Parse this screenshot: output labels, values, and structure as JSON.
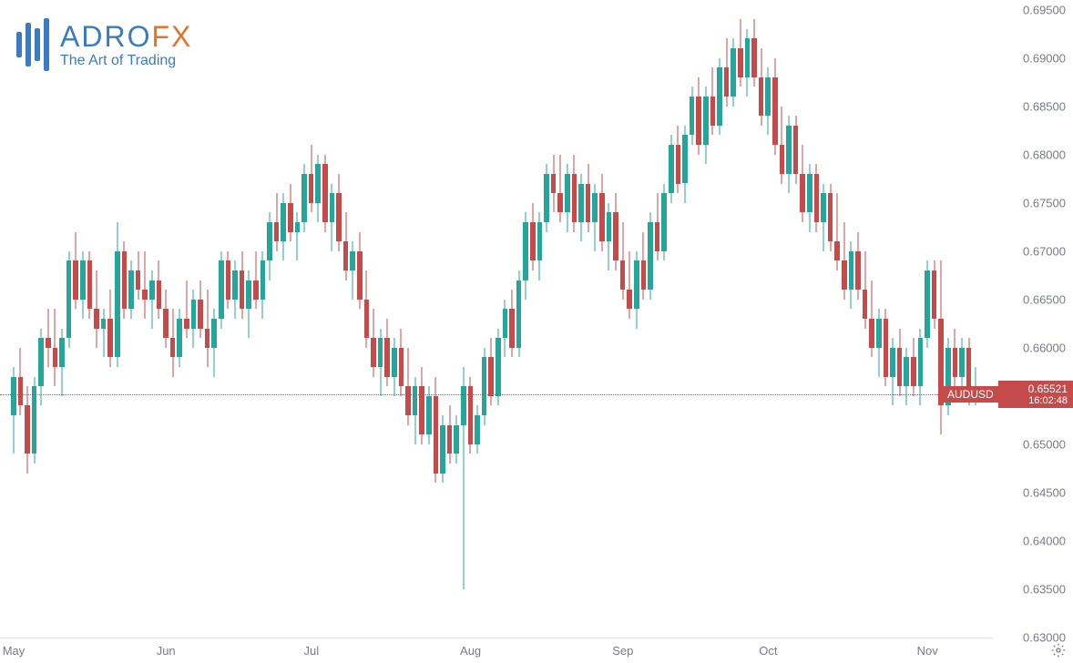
{
  "logo": {
    "brand_part1": "ADRO",
    "brand_part2": "FX",
    "tagline": "The Art of Trading",
    "color_primary": "#3b7bbf",
    "color_accent": "#e8712a"
  },
  "chart": {
    "type": "candlestick",
    "symbol": "AUDUSD",
    "current_price": "0.65521",
    "countdown": "16:02:48",
    "price_line_y": 0.65521,
    "colors": {
      "up": "#26a69a",
      "down": "#c54b4b",
      "axis_text": "#787b86",
      "grid": "#e0e3eb",
      "background": "#ffffff",
      "label_bg": "#c54b4b",
      "label_text": "#ffffff"
    },
    "y_axis": {
      "min": 0.63,
      "max": 0.696,
      "ticks": [
        {
          "v": 0.695,
          "label": "0.69500"
        },
        {
          "v": 0.69,
          "label": "0.69000"
        },
        {
          "v": 0.685,
          "label": "0.68500"
        },
        {
          "v": 0.68,
          "label": "0.68000"
        },
        {
          "v": 0.675,
          "label": "0.67500"
        },
        {
          "v": 0.67,
          "label": "0.67000"
        },
        {
          "v": 0.665,
          "label": "0.66500"
        },
        {
          "v": 0.66,
          "label": "0.66000"
        },
        {
          "v": 0.65521,
          "label": "0.65521",
          "is_price": true
        },
        {
          "v": 0.65,
          "label": "0.65000"
        },
        {
          "v": 0.645,
          "label": "0.64500"
        },
        {
          "v": 0.64,
          "label": "0.64000"
        },
        {
          "v": 0.635,
          "label": "0.63500"
        },
        {
          "v": 0.63,
          "label": "0.63000"
        }
      ]
    },
    "x_axis": {
      "ticks": [
        {
          "i": 0,
          "label": "May"
        },
        {
          "i": 22,
          "label": "Jun"
        },
        {
          "i": 43,
          "label": "Jul"
        },
        {
          "i": 66,
          "label": "Aug"
        },
        {
          "i": 88,
          "label": "Sep"
        },
        {
          "i": 109,
          "label": "Oct"
        },
        {
          "i": 132,
          "label": "Nov"
        }
      ],
      "candle_count": 142,
      "candle_width": 5.5,
      "candle_spacing": 7.6
    },
    "candles": [
      {
        "o": 0.653,
        "h": 0.658,
        "l": 0.649,
        "c": 0.657
      },
      {
        "o": 0.657,
        "h": 0.66,
        "l": 0.653,
        "c": 0.654
      },
      {
        "o": 0.654,
        "h": 0.656,
        "l": 0.647,
        "c": 0.649
      },
      {
        "o": 0.649,
        "h": 0.657,
        "l": 0.648,
        "c": 0.656
      },
      {
        "o": 0.656,
        "h": 0.662,
        "l": 0.654,
        "c": 0.661
      },
      {
        "o": 0.661,
        "h": 0.664,
        "l": 0.658,
        "c": 0.66
      },
      {
        "o": 0.66,
        "h": 0.664,
        "l": 0.656,
        "c": 0.658
      },
      {
        "o": 0.658,
        "h": 0.662,
        "l": 0.655,
        "c": 0.661
      },
      {
        "o": 0.661,
        "h": 0.67,
        "l": 0.66,
        "c": 0.669
      },
      {
        "o": 0.669,
        "h": 0.672,
        "l": 0.664,
        "c": 0.665
      },
      {
        "o": 0.665,
        "h": 0.67,
        "l": 0.663,
        "c": 0.669
      },
      {
        "o": 0.669,
        "h": 0.67,
        "l": 0.663,
        "c": 0.664
      },
      {
        "o": 0.664,
        "h": 0.668,
        "l": 0.66,
        "c": 0.662
      },
      {
        "o": 0.662,
        "h": 0.664,
        "l": 0.659,
        "c": 0.663
      },
      {
        "o": 0.663,
        "h": 0.666,
        "l": 0.658,
        "c": 0.659
      },
      {
        "o": 0.659,
        "h": 0.673,
        "l": 0.658,
        "c": 0.67
      },
      {
        "o": 0.67,
        "h": 0.671,
        "l": 0.663,
        "c": 0.664
      },
      {
        "o": 0.664,
        "h": 0.669,
        "l": 0.663,
        "c": 0.668
      },
      {
        "o": 0.668,
        "h": 0.67,
        "l": 0.665,
        "c": 0.666
      },
      {
        "o": 0.666,
        "h": 0.67,
        "l": 0.663,
        "c": 0.665
      },
      {
        "o": 0.665,
        "h": 0.668,
        "l": 0.662,
        "c": 0.667
      },
      {
        "o": 0.667,
        "h": 0.669,
        "l": 0.663,
        "c": 0.664
      },
      {
        "o": 0.664,
        "h": 0.666,
        "l": 0.66,
        "c": 0.661
      },
      {
        "o": 0.661,
        "h": 0.664,
        "l": 0.657,
        "c": 0.659
      },
      {
        "o": 0.659,
        "h": 0.664,
        "l": 0.658,
        "c": 0.663
      },
      {
        "o": 0.663,
        "h": 0.667,
        "l": 0.661,
        "c": 0.662
      },
      {
        "o": 0.662,
        "h": 0.666,
        "l": 0.66,
        "c": 0.665
      },
      {
        "o": 0.665,
        "h": 0.667,
        "l": 0.661,
        "c": 0.662
      },
      {
        "o": 0.662,
        "h": 0.666,
        "l": 0.658,
        "c": 0.66
      },
      {
        "o": 0.66,
        "h": 0.664,
        "l": 0.657,
        "c": 0.663
      },
      {
        "o": 0.663,
        "h": 0.67,
        "l": 0.662,
        "c": 0.669
      },
      {
        "o": 0.669,
        "h": 0.67,
        "l": 0.664,
        "c": 0.665
      },
      {
        "o": 0.665,
        "h": 0.669,
        "l": 0.663,
        "c": 0.668
      },
      {
        "o": 0.668,
        "h": 0.67,
        "l": 0.663,
        "c": 0.664
      },
      {
        "o": 0.664,
        "h": 0.668,
        "l": 0.661,
        "c": 0.667
      },
      {
        "o": 0.667,
        "h": 0.67,
        "l": 0.664,
        "c": 0.665
      },
      {
        "o": 0.665,
        "h": 0.67,
        "l": 0.663,
        "c": 0.669
      },
      {
        "o": 0.669,
        "h": 0.674,
        "l": 0.667,
        "c": 0.673
      },
      {
        "o": 0.673,
        "h": 0.676,
        "l": 0.67,
        "c": 0.671
      },
      {
        "o": 0.671,
        "h": 0.676,
        "l": 0.669,
        "c": 0.675
      },
      {
        "o": 0.675,
        "h": 0.677,
        "l": 0.671,
        "c": 0.672
      },
      {
        "o": 0.672,
        "h": 0.674,
        "l": 0.669,
        "c": 0.673
      },
      {
        "o": 0.673,
        "h": 0.679,
        "l": 0.672,
        "c": 0.678
      },
      {
        "o": 0.678,
        "h": 0.681,
        "l": 0.674,
        "c": 0.675
      },
      {
        "o": 0.675,
        "h": 0.68,
        "l": 0.673,
        "c": 0.679
      },
      {
        "o": 0.679,
        "h": 0.68,
        "l": 0.672,
        "c": 0.673
      },
      {
        "o": 0.673,
        "h": 0.677,
        "l": 0.67,
        "c": 0.676
      },
      {
        "o": 0.676,
        "h": 0.678,
        "l": 0.67,
        "c": 0.671
      },
      {
        "o": 0.671,
        "h": 0.674,
        "l": 0.667,
        "c": 0.668
      },
      {
        "o": 0.668,
        "h": 0.671,
        "l": 0.665,
        "c": 0.67
      },
      {
        "o": 0.67,
        "h": 0.672,
        "l": 0.664,
        "c": 0.665
      },
      {
        "o": 0.665,
        "h": 0.668,
        "l": 0.66,
        "c": 0.661
      },
      {
        "o": 0.661,
        "h": 0.664,
        "l": 0.657,
        "c": 0.658
      },
      {
        "o": 0.658,
        "h": 0.662,
        "l": 0.655,
        "c": 0.661
      },
      {
        "o": 0.661,
        "h": 0.663,
        "l": 0.656,
        "c": 0.657
      },
      {
        "o": 0.657,
        "h": 0.661,
        "l": 0.655,
        "c": 0.66
      },
      {
        "o": 0.66,
        "h": 0.662,
        "l": 0.655,
        "c": 0.656
      },
      {
        "o": 0.656,
        "h": 0.66,
        "l": 0.652,
        "c": 0.653
      },
      {
        "o": 0.653,
        "h": 0.657,
        "l": 0.65,
        "c": 0.656
      },
      {
        "o": 0.656,
        "h": 0.658,
        "l": 0.65,
        "c": 0.651
      },
      {
        "o": 0.651,
        "h": 0.656,
        "l": 0.65,
        "c": 0.655
      },
      {
        "o": 0.655,
        "h": 0.657,
        "l": 0.646,
        "c": 0.647
      },
      {
        "o": 0.647,
        "h": 0.653,
        "l": 0.646,
        "c": 0.652
      },
      {
        "o": 0.652,
        "h": 0.654,
        "l": 0.648,
        "c": 0.649
      },
      {
        "o": 0.649,
        "h": 0.653,
        "l": 0.648,
        "c": 0.652
      },
      {
        "o": 0.652,
        "h": 0.658,
        "l": 0.635,
        "c": 0.656
      },
      {
        "o": 0.656,
        "h": 0.657,
        "l": 0.649,
        "c": 0.65
      },
      {
        "o": 0.65,
        "h": 0.654,
        "l": 0.649,
        "c": 0.653
      },
      {
        "o": 0.653,
        "h": 0.66,
        "l": 0.652,
        "c": 0.659
      },
      {
        "o": 0.659,
        "h": 0.661,
        "l": 0.654,
        "c": 0.655
      },
      {
        "o": 0.655,
        "h": 0.662,
        "l": 0.654,
        "c": 0.661
      },
      {
        "o": 0.661,
        "h": 0.665,
        "l": 0.659,
        "c": 0.664
      },
      {
        "o": 0.664,
        "h": 0.666,
        "l": 0.659,
        "c": 0.66
      },
      {
        "o": 0.66,
        "h": 0.668,
        "l": 0.659,
        "c": 0.667
      },
      {
        "o": 0.667,
        "h": 0.674,
        "l": 0.665,
        "c": 0.673
      },
      {
        "o": 0.673,
        "h": 0.675,
        "l": 0.668,
        "c": 0.669
      },
      {
        "o": 0.669,
        "h": 0.674,
        "l": 0.667,
        "c": 0.673
      },
      {
        "o": 0.673,
        "h": 0.679,
        "l": 0.672,
        "c": 0.678
      },
      {
        "o": 0.678,
        "h": 0.68,
        "l": 0.674,
        "c": 0.676
      },
      {
        "o": 0.676,
        "h": 0.68,
        "l": 0.673,
        "c": 0.674
      },
      {
        "o": 0.674,
        "h": 0.679,
        "l": 0.672,
        "c": 0.678
      },
      {
        "o": 0.678,
        "h": 0.68,
        "l": 0.672,
        "c": 0.673
      },
      {
        "o": 0.673,
        "h": 0.678,
        "l": 0.671,
        "c": 0.677
      },
      {
        "o": 0.677,
        "h": 0.679,
        "l": 0.672,
        "c": 0.673
      },
      {
        "o": 0.673,
        "h": 0.677,
        "l": 0.67,
        "c": 0.676
      },
      {
        "o": 0.676,
        "h": 0.678,
        "l": 0.67,
        "c": 0.671
      },
      {
        "o": 0.671,
        "h": 0.675,
        "l": 0.668,
        "c": 0.674
      },
      {
        "o": 0.674,
        "h": 0.676,
        "l": 0.668,
        "c": 0.669
      },
      {
        "o": 0.669,
        "h": 0.673,
        "l": 0.665,
        "c": 0.666
      },
      {
        "o": 0.666,
        "h": 0.67,
        "l": 0.663,
        "c": 0.664
      },
      {
        "o": 0.664,
        "h": 0.67,
        "l": 0.662,
        "c": 0.669
      },
      {
        "o": 0.669,
        "h": 0.672,
        "l": 0.665,
        "c": 0.666
      },
      {
        "o": 0.666,
        "h": 0.674,
        "l": 0.665,
        "c": 0.673
      },
      {
        "o": 0.673,
        "h": 0.676,
        "l": 0.669,
        "c": 0.67
      },
      {
        "o": 0.67,
        "h": 0.677,
        "l": 0.669,
        "c": 0.676
      },
      {
        "o": 0.676,
        "h": 0.682,
        "l": 0.675,
        "c": 0.681
      },
      {
        "o": 0.681,
        "h": 0.683,
        "l": 0.676,
        "c": 0.677
      },
      {
        "o": 0.677,
        "h": 0.683,
        "l": 0.675,
        "c": 0.682
      },
      {
        "o": 0.682,
        "h": 0.687,
        "l": 0.681,
        "c": 0.686
      },
      {
        "o": 0.686,
        "h": 0.688,
        "l": 0.68,
        "c": 0.681
      },
      {
        "o": 0.681,
        "h": 0.687,
        "l": 0.679,
        "c": 0.686
      },
      {
        "o": 0.686,
        "h": 0.689,
        "l": 0.682,
        "c": 0.683
      },
      {
        "o": 0.683,
        "h": 0.69,
        "l": 0.682,
        "c": 0.689
      },
      {
        "o": 0.689,
        "h": 0.692,
        "l": 0.685,
        "c": 0.686
      },
      {
        "o": 0.686,
        "h": 0.692,
        "l": 0.685,
        "c": 0.691
      },
      {
        "o": 0.691,
        "h": 0.694,
        "l": 0.687,
        "c": 0.688
      },
      {
        "o": 0.688,
        "h": 0.693,
        "l": 0.686,
        "c": 0.692
      },
      {
        "o": 0.692,
        "h": 0.694,
        "l": 0.687,
        "c": 0.688
      },
      {
        "o": 0.688,
        "h": 0.691,
        "l": 0.683,
        "c": 0.684
      },
      {
        "o": 0.684,
        "h": 0.689,
        "l": 0.682,
        "c": 0.688
      },
      {
        "o": 0.688,
        "h": 0.69,
        "l": 0.68,
        "c": 0.681
      },
      {
        "o": 0.681,
        "h": 0.685,
        "l": 0.677,
        "c": 0.678
      },
      {
        "o": 0.678,
        "h": 0.684,
        "l": 0.676,
        "c": 0.683
      },
      {
        "o": 0.683,
        "h": 0.684,
        "l": 0.677,
        "c": 0.678
      },
      {
        "o": 0.678,
        "h": 0.681,
        "l": 0.673,
        "c": 0.674
      },
      {
        "o": 0.674,
        "h": 0.679,
        "l": 0.672,
        "c": 0.678
      },
      {
        "o": 0.678,
        "h": 0.679,
        "l": 0.672,
        "c": 0.673
      },
      {
        "o": 0.673,
        "h": 0.677,
        "l": 0.67,
        "c": 0.676
      },
      {
        "o": 0.676,
        "h": 0.677,
        "l": 0.67,
        "c": 0.671
      },
      {
        "o": 0.671,
        "h": 0.676,
        "l": 0.668,
        "c": 0.669
      },
      {
        "o": 0.669,
        "h": 0.673,
        "l": 0.665,
        "c": 0.666
      },
      {
        "o": 0.666,
        "h": 0.671,
        "l": 0.664,
        "c": 0.67
      },
      {
        "o": 0.67,
        "h": 0.672,
        "l": 0.665,
        "c": 0.666
      },
      {
        "o": 0.666,
        "h": 0.67,
        "l": 0.662,
        "c": 0.663
      },
      {
        "o": 0.663,
        "h": 0.667,
        "l": 0.659,
        "c": 0.66
      },
      {
        "o": 0.66,
        "h": 0.664,
        "l": 0.657,
        "c": 0.663
      },
      {
        "o": 0.663,
        "h": 0.664,
        "l": 0.656,
        "c": 0.657
      },
      {
        "o": 0.657,
        "h": 0.661,
        "l": 0.654,
        "c": 0.66
      },
      {
        "o": 0.66,
        "h": 0.662,
        "l": 0.655,
        "c": 0.656
      },
      {
        "o": 0.656,
        "h": 0.66,
        "l": 0.654,
        "c": 0.659
      },
      {
        "o": 0.659,
        "h": 0.661,
        "l": 0.655,
        "c": 0.656
      },
      {
        "o": 0.656,
        "h": 0.662,
        "l": 0.654,
        "c": 0.661
      },
      {
        "o": 0.661,
        "h": 0.669,
        "l": 0.66,
        "c": 0.668
      },
      {
        "o": 0.668,
        "h": 0.669,
        "l": 0.662,
        "c": 0.663
      },
      {
        "o": 0.663,
        "h": 0.669,
        "l": 0.651,
        "c": 0.654
      },
      {
        "o": 0.654,
        "h": 0.661,
        "l": 0.653,
        "c": 0.66
      },
      {
        "o": 0.66,
        "h": 0.662,
        "l": 0.656,
        "c": 0.657
      },
      {
        "o": 0.657,
        "h": 0.661,
        "l": 0.655,
        "c": 0.66
      },
      {
        "o": 0.66,
        "h": 0.661,
        "l": 0.654,
        "c": 0.6552
      },
      {
        "o": 0.6552,
        "h": 0.658,
        "l": 0.654,
        "c": 0.6552
      }
    ]
  }
}
